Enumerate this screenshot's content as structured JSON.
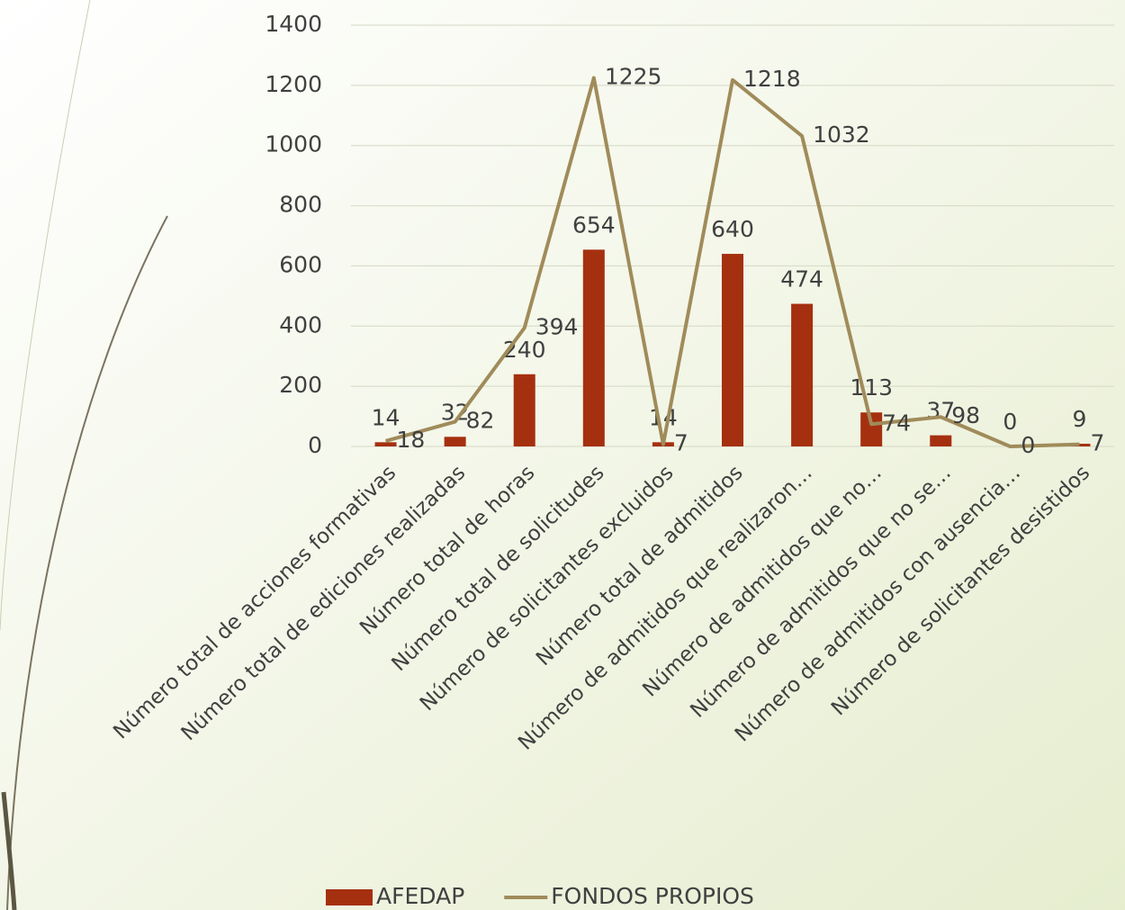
{
  "chart_data": {
    "type": "bar",
    "categories": [
      "Número total de acciones formativas",
      "Número total de ediciones realizadas",
      "Número total de horas",
      "Número total de solicitudes",
      "Número de solicitantes excluidos",
      "Número total de admitidos",
      "Número de admitidos que realizaron…",
      "Número de admitidos que no…",
      "Número de admitidos que no se…",
      "Número de admitidos con ausencia…",
      "Número de solicitantes desistidos"
    ],
    "series": [
      {
        "name": "AFEDAP",
        "type": "bar",
        "color": "#a5300f",
        "values": [
          14,
          32,
          240,
          654,
          14,
          640,
          474,
          113,
          37,
          0,
          9
        ]
      },
      {
        "name": "FONDOS PROPIOS",
        "type": "line",
        "color": "#a08b5a",
        "values": [
          18,
          82,
          394,
          1225,
          7,
          1218,
          1032,
          74,
          98,
          0,
          7
        ]
      }
    ],
    "ylim": [
      0,
      1400
    ],
    "yticks": [
      0,
      200,
      400,
      600,
      800,
      1000,
      1200,
      1400
    ],
    "grid": true
  }
}
